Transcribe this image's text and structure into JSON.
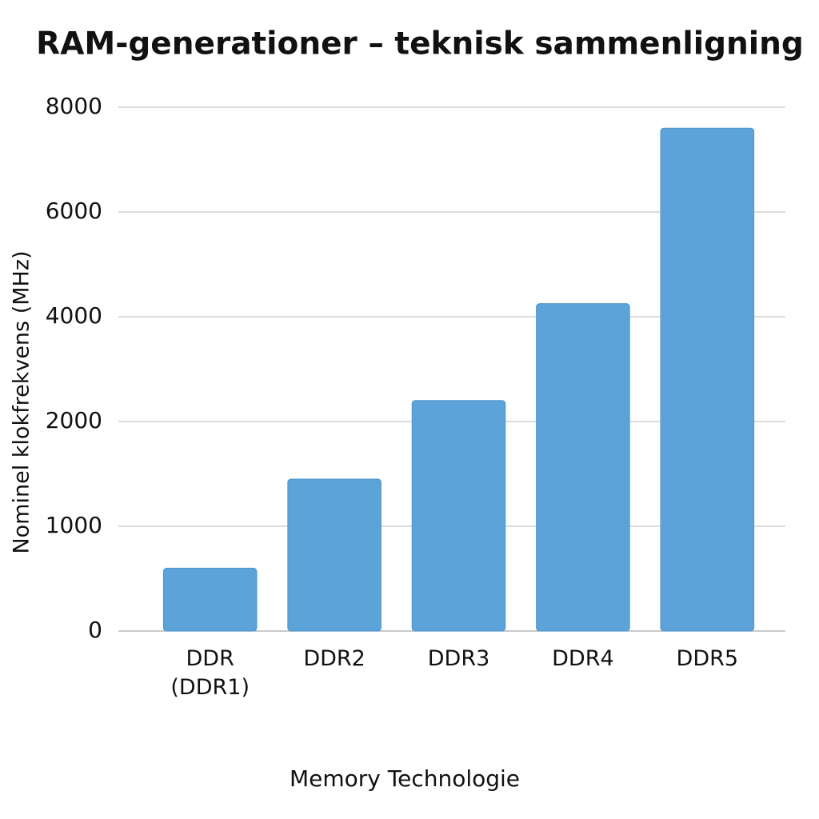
{
  "chart_data": {
    "type": "bar",
    "title": "RAM-generationer – teknisk sammenligning",
    "x_label": "Memory Technologie",
    "y_label": "Nominel klokfrekvens (MHz)",
    "categories": [
      "DDR\n(DDR1)",
      "DDR2",
      "DDR3",
      "DDR4",
      "DDR5"
    ],
    "values": [
      600,
      1450,
      2400,
      4250,
      7600
    ],
    "color": "#5ba3d9",
    "ylim": [
      0,
      8000
    ],
    "yticks": [
      0,
      1000,
      2000,
      4000,
      6000,
      8000
    ],
    "grid": true
  }
}
